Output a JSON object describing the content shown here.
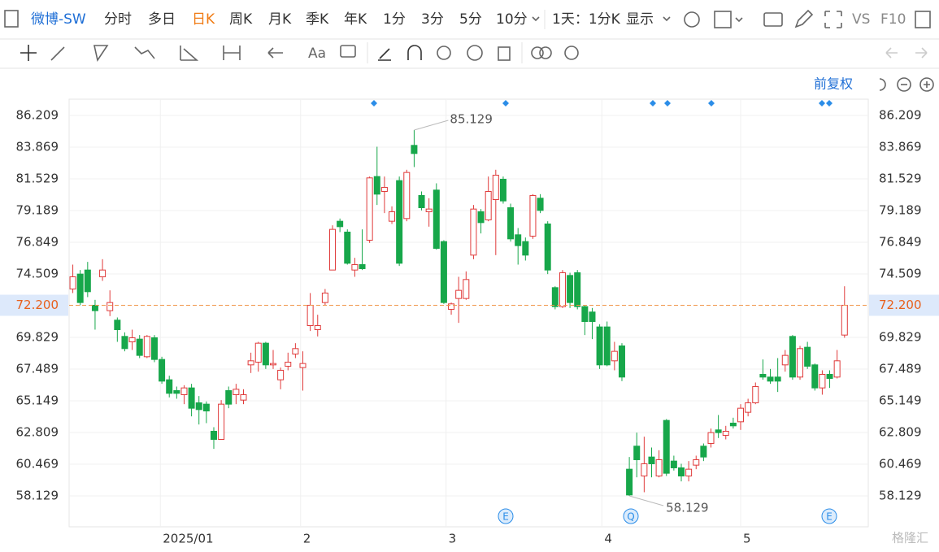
{
  "toolbar": {
    "stock": "微博-SW",
    "periods": [
      "分时",
      "多日",
      "日K",
      "周K",
      "月K",
      "季K",
      "年K",
      "1分",
      "3分",
      "5分",
      "10分"
    ],
    "interval": "1天：1分K",
    "display": "显示",
    "vs": "VS",
    "f10": "F10"
  },
  "adjust": "前复权",
  "watermark": "格隆汇",
  "chart_data": {
    "type": "candlestick",
    "up_color": "#e03a3a",
    "down_color": "#17a74a",
    "open": [
      73.4,
      74.5,
      74.8,
      72.2,
      74.3,
      71.8,
      71.1,
      69.9,
      69.5,
      69.7,
      68.4,
      69.8,
      68.2,
      66.7,
      65.9,
      65.6,
      66.1,
      65.0,
      64.9,
      62.9,
      62.3,
      65.9,
      65.6,
      65.2,
      67.8,
      68.0,
      69.4,
      67.8,
      66.7,
      67.7,
      68.6,
      67.6,
      70.7,
      70.4,
      72.4,
      74.8,
      78.4,
      77.6,
      74.8,
      75.2,
      77.0,
      81.7,
      80.6,
      78.4,
      81.4,
      78.6,
      84.0,
      80.3,
      79.1,
      80.7,
      76.9,
      71.9,
      72.7,
      72.7,
      75.9,
      79.1,
      78.5,
      80.0,
      81.5,
      79.4,
      77.4,
      76.9,
      77.3,
      80.1,
      78.2,
      73.5,
      72.1,
      74.4,
      74.6,
      72.1,
      71.7,
      70.6,
      70.6,
      68.1,
      69.2,
      60.1,
      61.8,
      59.6,
      61.0,
      59.6,
      63.7,
      60.7,
      60.2,
      59.6,
      60.4,
      61.8,
      62.0,
      63.0,
      62.6,
      63.5,
      63.6,
      64.3,
      65.0,
      67.1,
      66.9,
      66.9,
      67.8,
      69.9,
      66.9,
      69.1,
      67.8,
      66.1,
      67.1,
      66.9,
      70.0
    ],
    "high": [
      75.2,
      74.8,
      75.4,
      72.6,
      75.6,
      73.3,
      71.3,
      70.2,
      70.4,
      70.0,
      70.0,
      70.0,
      68.4,
      67.0,
      66.2,
      66.3,
      66.4,
      65.5,
      65.1,
      63.2,
      65.2,
      66.2,
      66.4,
      66.0,
      68.7,
      69.5,
      69.5,
      68.9,
      67.6,
      68.7,
      69.4,
      68.8,
      73.1,
      71.5,
      73.4,
      78.1,
      78.6,
      77.8,
      75.7,
      77.8,
      81.7,
      83.9,
      81.7,
      79.5,
      81.7,
      82.2,
      85.129,
      80.6,
      80.1,
      81.2,
      77.0,
      72.4,
      74.3,
      74.7,
      79.6,
      79.3,
      81.7,
      82.2,
      81.7,
      79.7,
      77.9,
      77.2,
      80.4,
      80.4,
      78.4,
      73.6,
      74.8,
      74.6,
      74.8,
      72.2,
      72.0,
      70.8,
      71.0,
      69.5,
      69.4,
      61.0,
      62.8,
      62.5,
      61.7,
      61.5,
      63.8,
      61.1,
      60.5,
      60.7,
      61.1,
      62.0,
      63.1,
      64.1,
      63.3,
      63.9,
      64.9,
      65.3,
      66.5,
      68.2,
      67.5,
      68.3,
      68.9,
      70.0,
      69.2,
      69.5,
      67.9,
      67.4,
      67.4,
      68.9,
      73.6
    ],
    "low": [
      73.1,
      72.2,
      72.8,
      70.4,
      74.0,
      71.4,
      69.5,
      68.8,
      68.9,
      68.3,
      68.3,
      68.0,
      66.4,
      65.4,
      65.3,
      64.9,
      64.0,
      63.4,
      63.5,
      61.6,
      62.3,
      64.6,
      64.9,
      64.9,
      67.2,
      67.3,
      67.5,
      67.5,
      66.0,
      67.4,
      68.3,
      65.9,
      70.3,
      69.9,
      72.2,
      74.8,
      77.6,
      75.2,
      74.3,
      74.8,
      76.8,
      79.6,
      79.0,
      78.2,
      75.1,
      78.4,
      82.4,
      79.2,
      78.0,
      76.3,
      72.3,
      71.5,
      70.9,
      72.6,
      75.6,
      77.5,
      78.4,
      75.9,
      79.7,
      76.9,
      75.2,
      75.5,
      77.1,
      79.0,
      74.5,
      71.9,
      72.0,
      72.0,
      71.9,
      70.0,
      69.7,
      67.5,
      67.7,
      67.4,
      66.6,
      58.129,
      59.5,
      58.4,
      59.5,
      59.5,
      59.6,
      60.0,
      59.2,
      59.2,
      60.1,
      60.7,
      61.7,
      62.4,
      62.3,
      63.1,
      63.0,
      64.0,
      64.9,
      66.7,
      66.4,
      65.8,
      67.3,
      66.7,
      66.7,
      67.5,
      65.9,
      65.6,
      66.1,
      66.8,
      69.8
    ],
    "close": [
      74.3,
      72.4,
      73.2,
      71.8,
      74.8,
      72.4,
      70.4,
      69.0,
      69.8,
      68.5,
      69.9,
      68.2,
      66.6,
      65.7,
      65.7,
      66.1,
      64.6,
      64.5,
      64.4,
      62.3,
      64.9,
      64.9,
      66.0,
      65.6,
      68.1,
      69.4,
      67.8,
      67.9,
      67.4,
      68.0,
      69.0,
      67.9,
      72.2,
      70.7,
      73.1,
      77.8,
      78.0,
      75.3,
      75.2,
      74.9,
      81.6,
      80.4,
      80.9,
      79.1,
      75.3,
      82.0,
      83.4,
      79.4,
      79.3,
      76.4,
      72.4,
      72.3,
      73.3,
      74.1,
      79.3,
      78.3,
      80.6,
      81.8,
      79.9,
      77.1,
      76.6,
      75.9,
      80.3,
      79.2,
      74.8,
      72.1,
      74.6,
      72.4,
      72.1,
      71.0,
      71.0,
      67.8,
      67.8,
      68.8,
      66.9,
      58.2,
      60.8,
      60.5,
      60.5,
      60.8,
      59.8,
      60.2,
      59.6,
      60.1,
      60.8,
      61.0,
      62.8,
      62.8,
      62.9,
      63.3,
      64.6,
      65.0,
      66.2,
      66.9,
      66.6,
      66.6,
      68.5,
      66.9,
      69.0,
      67.7,
      66.1,
      67.1,
      66.8,
      68.1,
      72.2
    ],
    "xlim": [
      -0.5,
      107.2
    ],
    "xticks": [
      {
        "value": 11.8,
        "label": "2025/01"
      },
      {
        "value": 30.7,
        "label": "2"
      },
      {
        "value": 50.3,
        "label": "3"
      },
      {
        "value": 71.3,
        "label": "4"
      },
      {
        "value": 90.0,
        "label": "5"
      }
    ],
    "ylim": [
      55.849,
      87.409
    ],
    "yticks": [
      86.209,
      83.869,
      81.529,
      79.189,
      76.849,
      74.509,
      69.829,
      67.489,
      65.149,
      62.809,
      60.469,
      58.129
    ],
    "current_price": {
      "value": 72.2,
      "label": "72.200"
    },
    "high_label": 85.129,
    "low_label": 58.129,
    "event_markers": [
      "E",
      "Q",
      "E"
    ],
    "grid": true
  }
}
